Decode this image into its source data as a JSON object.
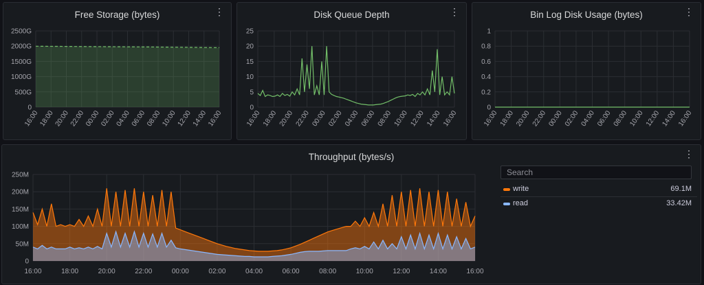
{
  "panels": {
    "free_storage": {
      "title": "Free Storage (bytes)",
      "menu_icon": "more-vertical-icon",
      "chart_data": {
        "type": "area",
        "title": "Free Storage (bytes)",
        "y_ticks": [
          "0",
          "500G",
          "1000G",
          "1500G",
          "2000G",
          "2500G"
        ],
        "x_ticks": [
          "16:00",
          "18:00",
          "20:00",
          "22:00",
          "00:00",
          "02:00",
          "04:00",
          "06:00",
          "08:00",
          "10:00",
          "12:00",
          "14:00",
          "16:00"
        ],
        "ylim": [
          0,
          2500
        ],
        "series": [
          {
            "values": [
              1998,
              1985,
              1970,
              1950
            ]
          }
        ],
        "color": "#73bf69"
      }
    },
    "disk_queue": {
      "title": "Disk Queue Depth",
      "menu_icon": "more-vertical-icon",
      "chart_data": {
        "type": "line",
        "title": "Disk Queue Depth",
        "y_ticks": [
          "0",
          "5",
          "10",
          "15",
          "20",
          "25"
        ],
        "x_ticks": [
          "16:00",
          "18:00",
          "20:00",
          "22:00",
          "00:00",
          "02:00",
          "04:00",
          "06:00",
          "08:00",
          "10:00",
          "12:00",
          "14:00",
          "16:00"
        ],
        "ylim": [
          0,
          25
        ],
        "series": [
          {
            "values": [
              4.5,
              3.8,
              5.5,
              3.5,
              4,
              3.8,
              3.5,
              3.6,
              4,
              3.5,
              4.5,
              3.8,
              4.2,
              3.6,
              5,
              4,
              6,
              4,
              16,
              5,
              14,
              6,
              20,
              4,
              7,
              4,
              15,
              4,
              20,
              5,
              4.2,
              3.8,
              3.5,
              3.3,
              3.1,
              2.9,
              2.6,
              2.3,
              2.0,
              1.7,
              1.4,
              1.2,
              1.0,
              0.9,
              0.8,
              0.7,
              0.7,
              0.7,
              0.8,
              0.9,
              1.0,
              1.2,
              1.5,
              1.8,
              2.2,
              2.6,
              3.0,
              3.3,
              3.5,
              3.6,
              3.7,
              4,
              3.8,
              4.2,
              3.5,
              4.5,
              4,
              5,
              4,
              6,
              4,
              12,
              5,
              19,
              4,
              10,
              4,
              5,
              4,
              10,
              4.5
            ]
          }
        ],
        "color": "#73bf69"
      }
    },
    "binlog": {
      "title": "Bin Log Disk Usage (bytes)",
      "menu_icon": "more-vertical-icon",
      "chart_data": {
        "type": "line",
        "title": "Bin Log Disk Usage (bytes)",
        "y_ticks": [
          "0",
          "0.2",
          "0.4",
          "0.6",
          "0.8",
          "1"
        ],
        "x_ticks": [
          "16:00",
          "18:00",
          "20:00",
          "22:00",
          "00:00",
          "02:00",
          "04:00",
          "06:00",
          "08:00",
          "10:00",
          "12:00",
          "14:00",
          "16:00"
        ],
        "ylim": [
          0,
          1
        ],
        "series": [
          {
            "values": [
              0,
              0
            ]
          }
        ],
        "color": "#73bf69"
      }
    },
    "throughput": {
      "title": "Throughput (bytes/s)",
      "menu_icon": "more-vertical-icon",
      "legend": {
        "search_placeholder": "Search",
        "items": [
          {
            "name": "write",
            "value": "69.1M",
            "color": "#ff780a"
          },
          {
            "name": "read",
            "value": "33.42M",
            "color": "#8ab8ff"
          }
        ]
      },
      "chart_data": {
        "type": "area",
        "title": "Throughput (bytes/s)",
        "y_ticks": [
          "0",
          "50M",
          "100M",
          "150M",
          "200M",
          "250M"
        ],
        "x_ticks": [
          "16:00",
          "18:00",
          "20:00",
          "22:00",
          "00:00",
          "02:00",
          "04:00",
          "06:00",
          "08:00",
          "10:00",
          "12:00",
          "14:00",
          "16:00"
        ],
        "ylim": [
          0,
          250
        ],
        "series": [
          {
            "name": "write",
            "color": "#ff780a",
            "values": [
              140,
              105,
              150,
              100,
              165,
              100,
              105,
              100,
              105,
              100,
              120,
              100,
              130,
              100,
              150,
              100,
              210,
              100,
              200,
              100,
              205,
              100,
              210,
              100,
              200,
              100,
              190,
              100,
              205,
              100,
              200,
              95,
              90,
              85,
              80,
              75,
              70,
              65,
              60,
              55,
              50,
              46,
              42,
              39,
              36,
              34,
              32,
              30,
              29,
              28,
              28,
              28,
              29,
              30,
              32,
              35,
              38,
              43,
              48,
              54,
              60,
              66,
              72,
              78,
              84,
              88,
              92,
              96,
              100,
              100,
              115,
              100,
              125,
              100,
              140,
              100,
              165,
              100,
              190,
              100,
              200,
              100,
              205,
              100,
              210,
              100,
              200,
              100,
              205,
              100,
              200,
              100,
              180,
              100,
              170,
              100,
              130
            ]
          },
          {
            "name": "read",
            "color": "#8ab8ff",
            "values": [
              40,
              35,
              45,
              35,
              40,
              35,
              35,
              35,
              40,
              35,
              38,
              35,
              40,
              35,
              42,
              35,
              80,
              40,
              85,
              40,
              80,
              40,
              85,
              40,
              80,
              40,
              78,
              40,
              80,
              40,
              60,
              38,
              35,
              33,
              31,
              29,
              27,
              25,
              23,
              21,
              19,
              18,
              17,
              16,
              15,
              14,
              13,
              13,
              12,
              12,
              12,
              12,
              13,
              14,
              15,
              17,
              19,
              22,
              25,
              27,
              28,
              28,
              28,
              29,
              30,
              30,
              30,
              30,
              30,
              35,
              38,
              35,
              42,
              35,
              55,
              35,
              60,
              35,
              50,
              35,
              70,
              35,
              75,
              35,
              80,
              35,
              75,
              35,
              80,
              35,
              75,
              35,
              70,
              35,
              65,
              35,
              40
            ]
          }
        ]
      }
    }
  }
}
